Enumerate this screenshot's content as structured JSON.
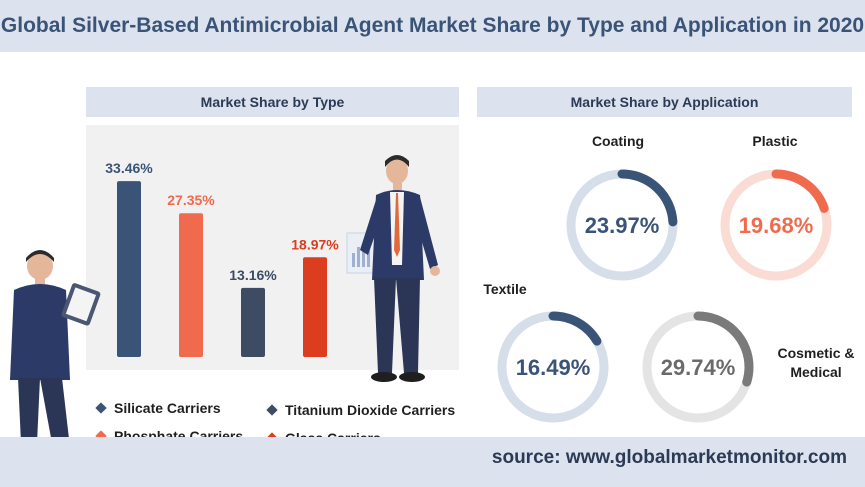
{
  "title": "Global Silver-Based Antimicrobial Agent Market Share by Type and Application in 2020",
  "source": "source:  www.globalmarketmonitor.com",
  "panels": {
    "type_header": "Market Share by Type",
    "application_header": "Market Share by Application"
  },
  "chart_data": [
    {
      "type": "bar",
      "title": "Market Share by Type",
      "categories": [
        "Silicate Carriers",
        "Phosphate Carriers",
        "Titanium Dioxide Carriers",
        "Glass Carriers"
      ],
      "values": [
        33.46,
        27.35,
        13.16,
        18.97
      ],
      "value_labels": [
        "33.46%",
        "27.35%",
        "13.16%",
        "18.97%"
      ],
      "colors": [
        "#3a5478",
        "#f06a4e",
        "#3d4b63",
        "#dc3d1f"
      ],
      "ylim": [
        0,
        35
      ],
      "grid": false,
      "legend": "bottom"
    },
    {
      "type": "pie",
      "title": "Market Share by Application",
      "categories": [
        "Coating",
        "Plastic",
        "Textile",
        "Cosmetic & Medical"
      ],
      "values": [
        23.97,
        19.68,
        16.49,
        29.74
      ],
      "value_labels": [
        "23.97%",
        "19.68%",
        "16.49%",
        "29.74%"
      ],
      "colors": [
        "#3a5478",
        "#f06a4e",
        "#3a5478",
        "#7a7a7a"
      ],
      "track_colors": [
        "#d6deea",
        "#fbdcd5",
        "#d6deea",
        "#e4e4e4"
      ],
      "value_colors": [
        "#3a5478",
        "#f06a4e",
        "#3a5478",
        "#6a6a6a"
      ]
    }
  ]
}
